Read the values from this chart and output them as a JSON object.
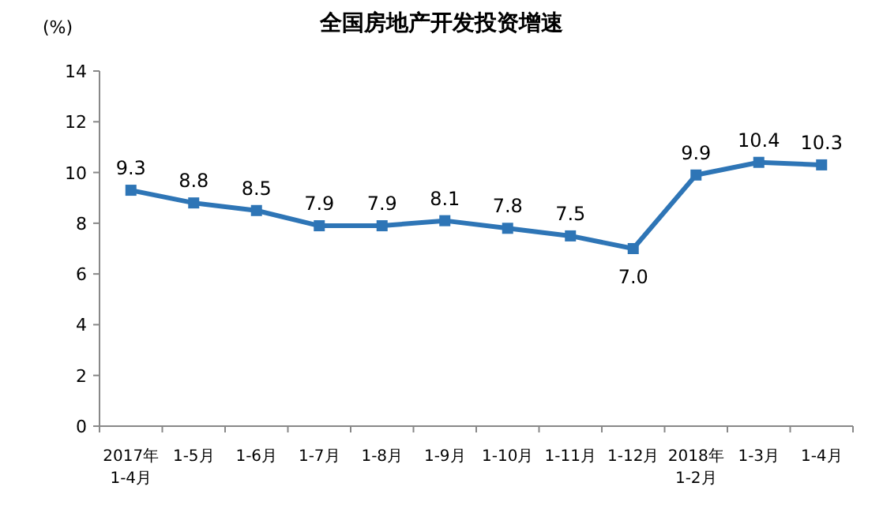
{
  "chart_data": {
    "type": "line",
    "title": "全国房地产开发投资增速",
    "ylabel": "(%)",
    "categories": [
      "2017年\n1-4月",
      "1-5月",
      "1-6月",
      "1-7月",
      "1-8月",
      "1-9月",
      "1-10月",
      "1-11月",
      "1-12月",
      "2018年\n1-2月",
      "1-3月",
      "1-4月"
    ],
    "values": [
      9.3,
      8.8,
      8.5,
      7.9,
      7.9,
      8.1,
      7.8,
      7.5,
      7.0,
      9.9,
      10.4,
      10.3
    ],
    "value_labels": [
      "9.3",
      "8.8",
      "8.5",
      "7.9",
      "7.9",
      "8.1",
      "7.8",
      "7.5",
      "7.0",
      "9.9",
      "10.4",
      "10.3"
    ],
    "color": "#2e75b6",
    "marker": "square",
    "ylim": [
      0,
      14
    ],
    "yticks": [
      0,
      2,
      4,
      6,
      8,
      10,
      12,
      14
    ],
    "grid": false
  }
}
